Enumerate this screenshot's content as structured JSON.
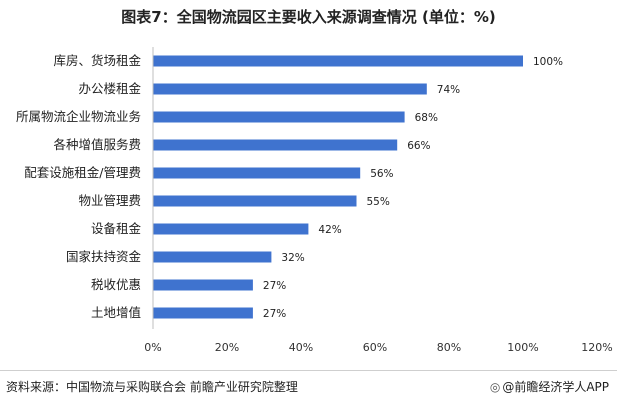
{
  "title": "图表7：全国物流园区主要收入来源调查情况 (单位：%)",
  "colors": {
    "bar": "#3f73cf",
    "axis": "#bfbfbf"
  },
  "chart_data": {
    "type": "bar",
    "orientation": "horizontal",
    "categories": [
      "库房、货场租金",
      "办公楼租金",
      "所属物流企业物流业务",
      "各种增值服务费",
      "配套设施租金/管理费",
      "物业管理费",
      "设备租金",
      "国家扶持资金",
      "税收优惠",
      "土地增值"
    ],
    "values": [
      100,
      74,
      68,
      66,
      56,
      55,
      42,
      32,
      27,
      27
    ],
    "value_labels": [
      "100%",
      "74%",
      "68%",
      "66%",
      "56%",
      "55%",
      "42%",
      "32%",
      "27%",
      "27%"
    ],
    "xlim": [
      0,
      120
    ],
    "xticks": [
      "0%",
      "20%",
      "40%",
      "60%",
      "80%",
      "100%",
      "120%"
    ],
    "grid": false
  },
  "footer": {
    "source": "资料来源：中国物流与采购联合会 前瞻产业研究院整理",
    "logo_icon": "qianzhan-logo-icon",
    "brand": "@前瞻经济学人APP"
  }
}
